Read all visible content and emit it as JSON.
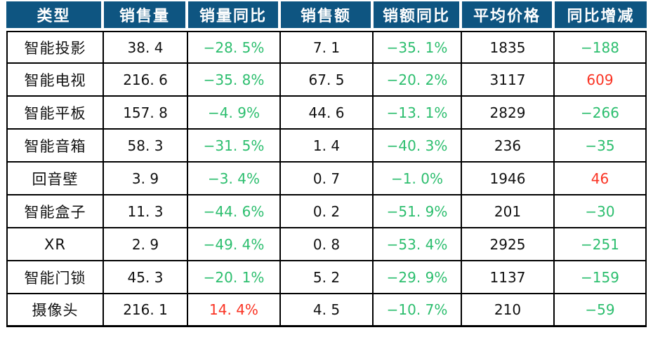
{
  "colors": {
    "header_bg": "#0e5581",
    "header_text": "#ffffff",
    "body_text": "#111111",
    "negative_value_green": "#2cbe6e",
    "positive_value_red": "#fa3323",
    "grid_line": "#000000"
  },
  "table": {
    "headers": [
      "类型",
      "销售量",
      "销量同比",
      "销售额",
      "销额同比",
      "平均价格",
      "同比增减"
    ],
    "rows": [
      {
        "cells": [
          {
            "text": "智能投影",
            "color": "default"
          },
          {
            "text": "38. 4",
            "color": "default"
          },
          {
            "text": "−28. 5%",
            "color": "green"
          },
          {
            "text": "7. 1",
            "color": "default"
          },
          {
            "text": "−35. 1%",
            "color": "green"
          },
          {
            "text": "1835",
            "color": "default"
          },
          {
            "text": "−188",
            "color": "green"
          }
        ]
      },
      {
        "cells": [
          {
            "text": "智能电视",
            "color": "default"
          },
          {
            "text": "216. 6",
            "color": "default"
          },
          {
            "text": "−35. 8%",
            "color": "green"
          },
          {
            "text": "67. 5",
            "color": "default"
          },
          {
            "text": "−20. 2%",
            "color": "green"
          },
          {
            "text": "3117",
            "color": "default"
          },
          {
            "text": "609",
            "color": "red"
          }
        ]
      },
      {
        "cells": [
          {
            "text": "智能平板",
            "color": "default"
          },
          {
            "text": "157. 8",
            "color": "default"
          },
          {
            "text": "−4. 9%",
            "color": "green"
          },
          {
            "text": "44. 6",
            "color": "default"
          },
          {
            "text": "−13. 1%",
            "color": "green"
          },
          {
            "text": "2829",
            "color": "default"
          },
          {
            "text": "−266",
            "color": "green"
          }
        ]
      },
      {
        "cells": [
          {
            "text": "智能音箱",
            "color": "default"
          },
          {
            "text": "58. 3",
            "color": "default"
          },
          {
            "text": "−31. 5%",
            "color": "green"
          },
          {
            "text": "1. 4",
            "color": "default"
          },
          {
            "text": "−40. 3%",
            "color": "green"
          },
          {
            "text": "236",
            "color": "default"
          },
          {
            "text": "−35",
            "color": "green"
          }
        ]
      },
      {
        "cells": [
          {
            "text": "回音壁",
            "color": "default"
          },
          {
            "text": "3. 9",
            "color": "default"
          },
          {
            "text": "−3. 4%",
            "color": "green"
          },
          {
            "text": "0. 7",
            "color": "default"
          },
          {
            "text": "−1. 0%",
            "color": "green"
          },
          {
            "text": "1946",
            "color": "default"
          },
          {
            "text": "46",
            "color": "red"
          }
        ]
      },
      {
        "cells": [
          {
            "text": "智能盒子",
            "color": "default"
          },
          {
            "text": "11. 3",
            "color": "default"
          },
          {
            "text": "−44. 6%",
            "color": "green"
          },
          {
            "text": "0. 2",
            "color": "default"
          },
          {
            "text": "−51. 9%",
            "color": "green"
          },
          {
            "text": "201",
            "color": "default"
          },
          {
            "text": "−30",
            "color": "green"
          }
        ]
      },
      {
        "cells": [
          {
            "text": "XR",
            "color": "default"
          },
          {
            "text": "2. 9",
            "color": "default"
          },
          {
            "text": "−49. 4%",
            "color": "green"
          },
          {
            "text": "0. 8",
            "color": "default"
          },
          {
            "text": "−53. 4%",
            "color": "green"
          },
          {
            "text": "2925",
            "color": "default"
          },
          {
            "text": "−251",
            "color": "green"
          }
        ]
      },
      {
        "cells": [
          {
            "text": "智能门锁",
            "color": "default"
          },
          {
            "text": "45. 3",
            "color": "default"
          },
          {
            "text": "−20. 1%",
            "color": "green"
          },
          {
            "text": "5. 2",
            "color": "default"
          },
          {
            "text": "−29. 9%",
            "color": "green"
          },
          {
            "text": "1137",
            "color": "default"
          },
          {
            "text": "−159",
            "color": "green"
          }
        ]
      },
      {
        "cells": [
          {
            "text": "摄像头",
            "color": "default"
          },
          {
            "text": "216. 1",
            "color": "default"
          },
          {
            "text": "14. 4%",
            "color": "red"
          },
          {
            "text": "4. 5",
            "color": "default"
          },
          {
            "text": "−10. 7%",
            "color": "green"
          },
          {
            "text": "210",
            "color": "default"
          },
          {
            "text": "−59",
            "color": "green"
          }
        ]
      }
    ]
  },
  "chart_data": {
    "type": "table",
    "title": "",
    "columns": [
      "类型",
      "销售量",
      "销量同比",
      "销售额",
      "销额同比",
      "平均价格",
      "同比增减"
    ],
    "percent_columns": [
      "销量同比",
      "销额同比"
    ],
    "color_convention": {
      "negative": "green",
      "positive": "red"
    },
    "rows": [
      {
        "类型": "智能投影",
        "销售量": 38.4,
        "销量同比_pct": -28.5,
        "销售额": 7.1,
        "销额同比_pct": -35.1,
        "平均价格": 1835,
        "同比增减": -188
      },
      {
        "类型": "智能电视",
        "销售量": 216.6,
        "销量同比_pct": -35.8,
        "销售额": 67.5,
        "销额同比_pct": -20.2,
        "平均价格": 3117,
        "同比增减": 609
      },
      {
        "类型": "智能平板",
        "销售量": 157.8,
        "销量同比_pct": -4.9,
        "销售额": 44.6,
        "销额同比_pct": -13.1,
        "平均价格": 2829,
        "同比增减": -266
      },
      {
        "类型": "智能音箱",
        "销售量": 58.3,
        "销量同比_pct": -31.5,
        "销售额": 1.4,
        "销额同比_pct": -40.3,
        "平均价格": 236,
        "同比增减": -35
      },
      {
        "类型": "回音壁",
        "销售量": 3.9,
        "销量同比_pct": -3.4,
        "销售额": 0.7,
        "销额同比_pct": -1.0,
        "平均价格": 1946,
        "同比增减": 46
      },
      {
        "类型": "智能盒子",
        "销售量": 11.3,
        "销量同比_pct": -44.6,
        "销售额": 0.2,
        "销额同比_pct": -51.9,
        "平均价格": 201,
        "同比增减": -30
      },
      {
        "类型": "XR",
        "销售量": 2.9,
        "销量同比_pct": -49.4,
        "销售额": 0.8,
        "销额同比_pct": -53.4,
        "平均价格": 2925,
        "同比增减": -251
      },
      {
        "类型": "智能门锁",
        "销售量": 45.3,
        "销量同比_pct": -20.1,
        "销售额": 5.2,
        "销额同比_pct": -29.9,
        "平均价格": 1137,
        "同比增减": -159
      },
      {
        "类型": "摄像头",
        "销售量": 216.1,
        "销量同比_pct": 14.4,
        "销售额": 4.5,
        "销额同比_pct": -10.7,
        "平均价格": 210,
        "同比增减": -59
      }
    ]
  }
}
